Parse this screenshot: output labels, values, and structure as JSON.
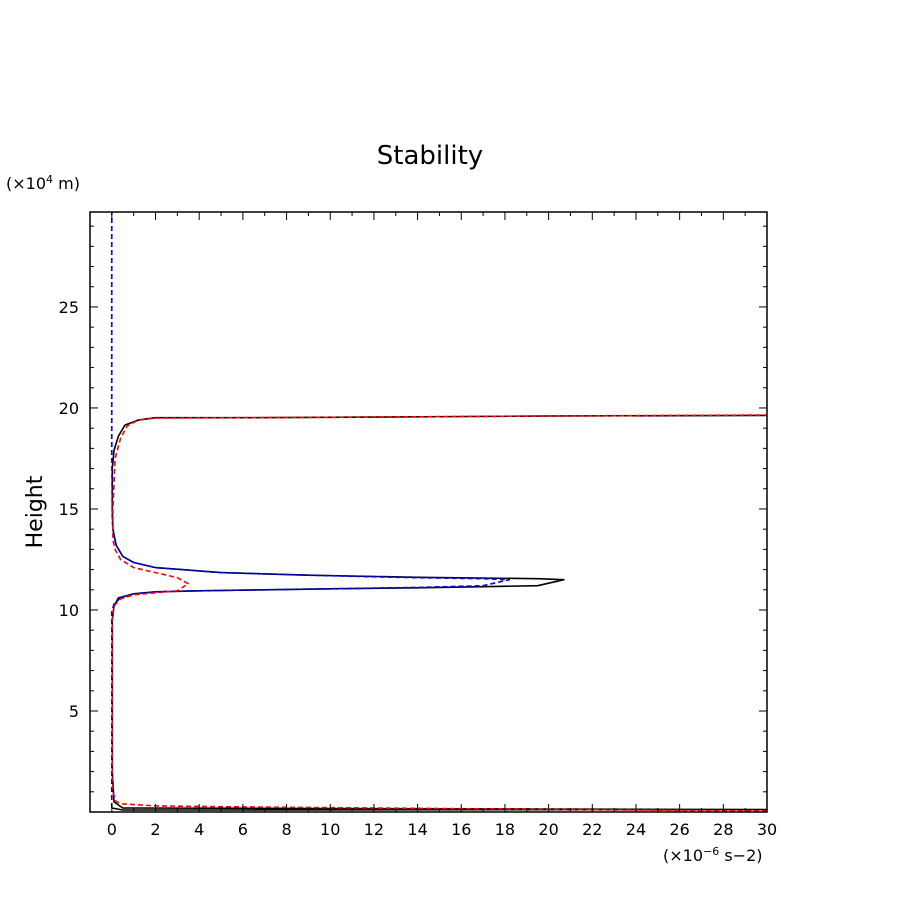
{
  "chart_data": {
    "type": "line",
    "title": "Stability",
    "xlabel": "",
    "ylabel": "Height",
    "x_unit": {
      "base": "(×10",
      "exp": "−6",
      "rest": " s−2)"
    },
    "y_unit": {
      "base": "(×10",
      "exp": "4",
      "rest": " m)"
    },
    "xlim": [
      -1,
      30
    ],
    "ylim": [
      0,
      29.7
    ],
    "x_ticks": [
      0,
      2,
      4,
      6,
      8,
      10,
      12,
      14,
      16,
      18,
      20,
      22,
      24,
      26,
      28,
      30
    ],
    "x_tick_labels": [
      "0",
      "2",
      "4",
      "6",
      "8",
      "10",
      "12",
      "14",
      "16",
      "18",
      "20",
      "22",
      "24",
      "26",
      "28",
      "30"
    ],
    "y_ticks": [
      5,
      10,
      15,
      20,
      25
    ],
    "y_tick_labels": [
      "5",
      "10",
      "15",
      "20",
      "25"
    ],
    "grid": false,
    "series": [
      {
        "color": "#000000",
        "dash": "solid",
        "x": [
          0,
          0.5,
          30,
          0.5,
          0.1,
          0.02,
          0.02,
          0.1,
          0.3,
          1,
          2,
          4,
          7,
          10,
          14,
          17,
          19.5,
          20.7,
          19.5,
          14,
          9,
          5,
          2,
          1,
          0.5,
          0.2,
          0.05,
          0.02,
          0.02,
          0.1,
          0.3,
          0.6,
          1.2,
          2,
          6,
          12,
          20,
          30
        ],
        "y": [
          0.2,
          0.1,
          0.12,
          0.2,
          0.5,
          2,
          9.5,
          10.2,
          10.6,
          10.8,
          10.9,
          10.95,
          11.0,
          11.05,
          11.1,
          11.15,
          11.2,
          11.5,
          11.55,
          11.62,
          11.72,
          11.85,
          12.1,
          12.35,
          12.65,
          13.2,
          14,
          15,
          17,
          17.9,
          18.6,
          19.15,
          19.4,
          19.52,
          19.52,
          19.55,
          19.6,
          19.63
        ]
      },
      {
        "color": "#0000ff",
        "dash": "dashed",
        "x": [
          0,
          0,
          0,
          0,
          0,
          0.1,
          0.4,
          1,
          2,
          4,
          7,
          10,
          14,
          17,
          18.2,
          17,
          13,
          9,
          5,
          2,
          1,
          0.5,
          0.2,
          0.05,
          0.02,
          0,
          0,
          0
        ],
        "y": [
          0.2,
          2,
          9.5,
          9.8,
          9.9,
          10.3,
          10.6,
          10.8,
          10.9,
          10.95,
          11.0,
          11.05,
          11.12,
          11.2,
          11.5,
          11.55,
          11.62,
          11.72,
          11.85,
          12.1,
          12.35,
          12.65,
          13.2,
          14,
          14.5,
          18,
          24,
          29.7
        ]
      },
      {
        "color": "#ff0000",
        "dash": "dashed",
        "x": [
          30,
          18,
          12,
          6,
          2,
          0.5,
          0.2,
          0.05,
          0.02,
          0.02,
          0.1,
          0.4,
          1,
          2,
          3,
          3.5,
          3,
          2,
          1,
          0.4,
          0.15,
          0.05,
          0.05,
          0.15,
          0.4,
          0.7,
          1.2,
          2,
          6,
          12,
          20,
          30
        ],
        "y": [
          0.05,
          0.15,
          0.2,
          0.25,
          0.3,
          0.4,
          0.5,
          1,
          2,
          9.5,
          10.2,
          10.55,
          10.75,
          10.85,
          10.95,
          11.3,
          11.6,
          11.85,
          12.1,
          12.5,
          13,
          13.5,
          15,
          17.5,
          18.5,
          19.1,
          19.4,
          19.5,
          19.52,
          19.55,
          19.6,
          19.65
        ]
      }
    ]
  }
}
